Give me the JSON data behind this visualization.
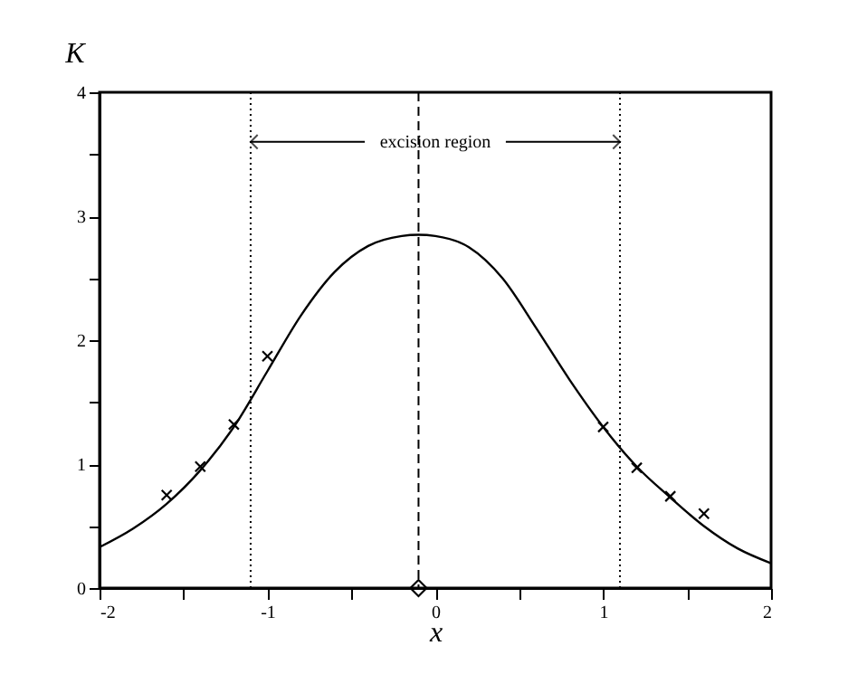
{
  "chart_data": {
    "type": "line",
    "xlabel": "x",
    "ylabel": "K",
    "xlim": [
      -2,
      2
    ],
    "ylim": [
      0,
      4
    ],
    "xticks": [
      -2,
      {
        "value": -1.5,
        "label": null
      },
      -1,
      {
        "value": -0.5,
        "label": null
      },
      0,
      {
        "value": 0.5,
        "label": null
      },
      1,
      {
        "value": 1.5,
        "label": null
      },
      2
    ],
    "yticks": [
      0,
      {
        "value": 0.5,
        "label": null
      },
      1,
      {
        "value": 1.5,
        "label": null
      },
      2,
      {
        "value": 2.5,
        "label": null
      },
      3,
      {
        "value": 3.5,
        "label": null
      },
      4
    ],
    "grid": false,
    "series": [
      {
        "color": "#000000",
        "line_style": "solid",
        "marker": "none",
        "x": [
          -2,
          -1.8,
          -1.6,
          -1.4,
          -1.2,
          -1.0,
          -0.8,
          -0.6,
          -0.4,
          -0.2,
          -0.1,
          0,
          0.2,
          0.4,
          0.6,
          0.8,
          1.0,
          1.2,
          1.4,
          1.6,
          1.8,
          2.0
        ],
        "values": [
          0.33,
          0.48,
          0.68,
          0.95,
          1.3,
          1.75,
          2.2,
          2.55,
          2.76,
          2.84,
          2.85,
          2.84,
          2.75,
          2.5,
          2.1,
          1.68,
          1.3,
          0.98,
          0.73,
          0.5,
          0.32,
          0.2
        ]
      },
      {
        "type": "scatter",
        "color": "#000000",
        "marker": "cross",
        "x": [
          -1.6,
          -1.4,
          -1.2,
          -1.0,
          1.0,
          1.2,
          1.4,
          1.6
        ],
        "values": [
          0.75,
          0.98,
          1.32,
          1.87,
          1.3,
          0.97,
          0.74,
          0.6
        ]
      },
      {
        "type": "scatter",
        "color": "#000000",
        "marker": "diamond",
        "x": [
          -0.1
        ],
        "values": [
          0
        ]
      }
    ],
    "ref_lines": [
      {
        "axis": "x",
        "value": -1.1,
        "line_style": "dotted",
        "color": "#000000"
      },
      {
        "axis": "x",
        "value": 1.1,
        "line_style": "dotted",
        "color": "#000000"
      },
      {
        "axis": "x",
        "value": -0.1,
        "line_style": "dashed",
        "color": "#000000"
      }
    ],
    "annotations": [
      {
        "text": "excision region",
        "x": 1.1,
        "y": 3.6
      }
    ]
  }
}
